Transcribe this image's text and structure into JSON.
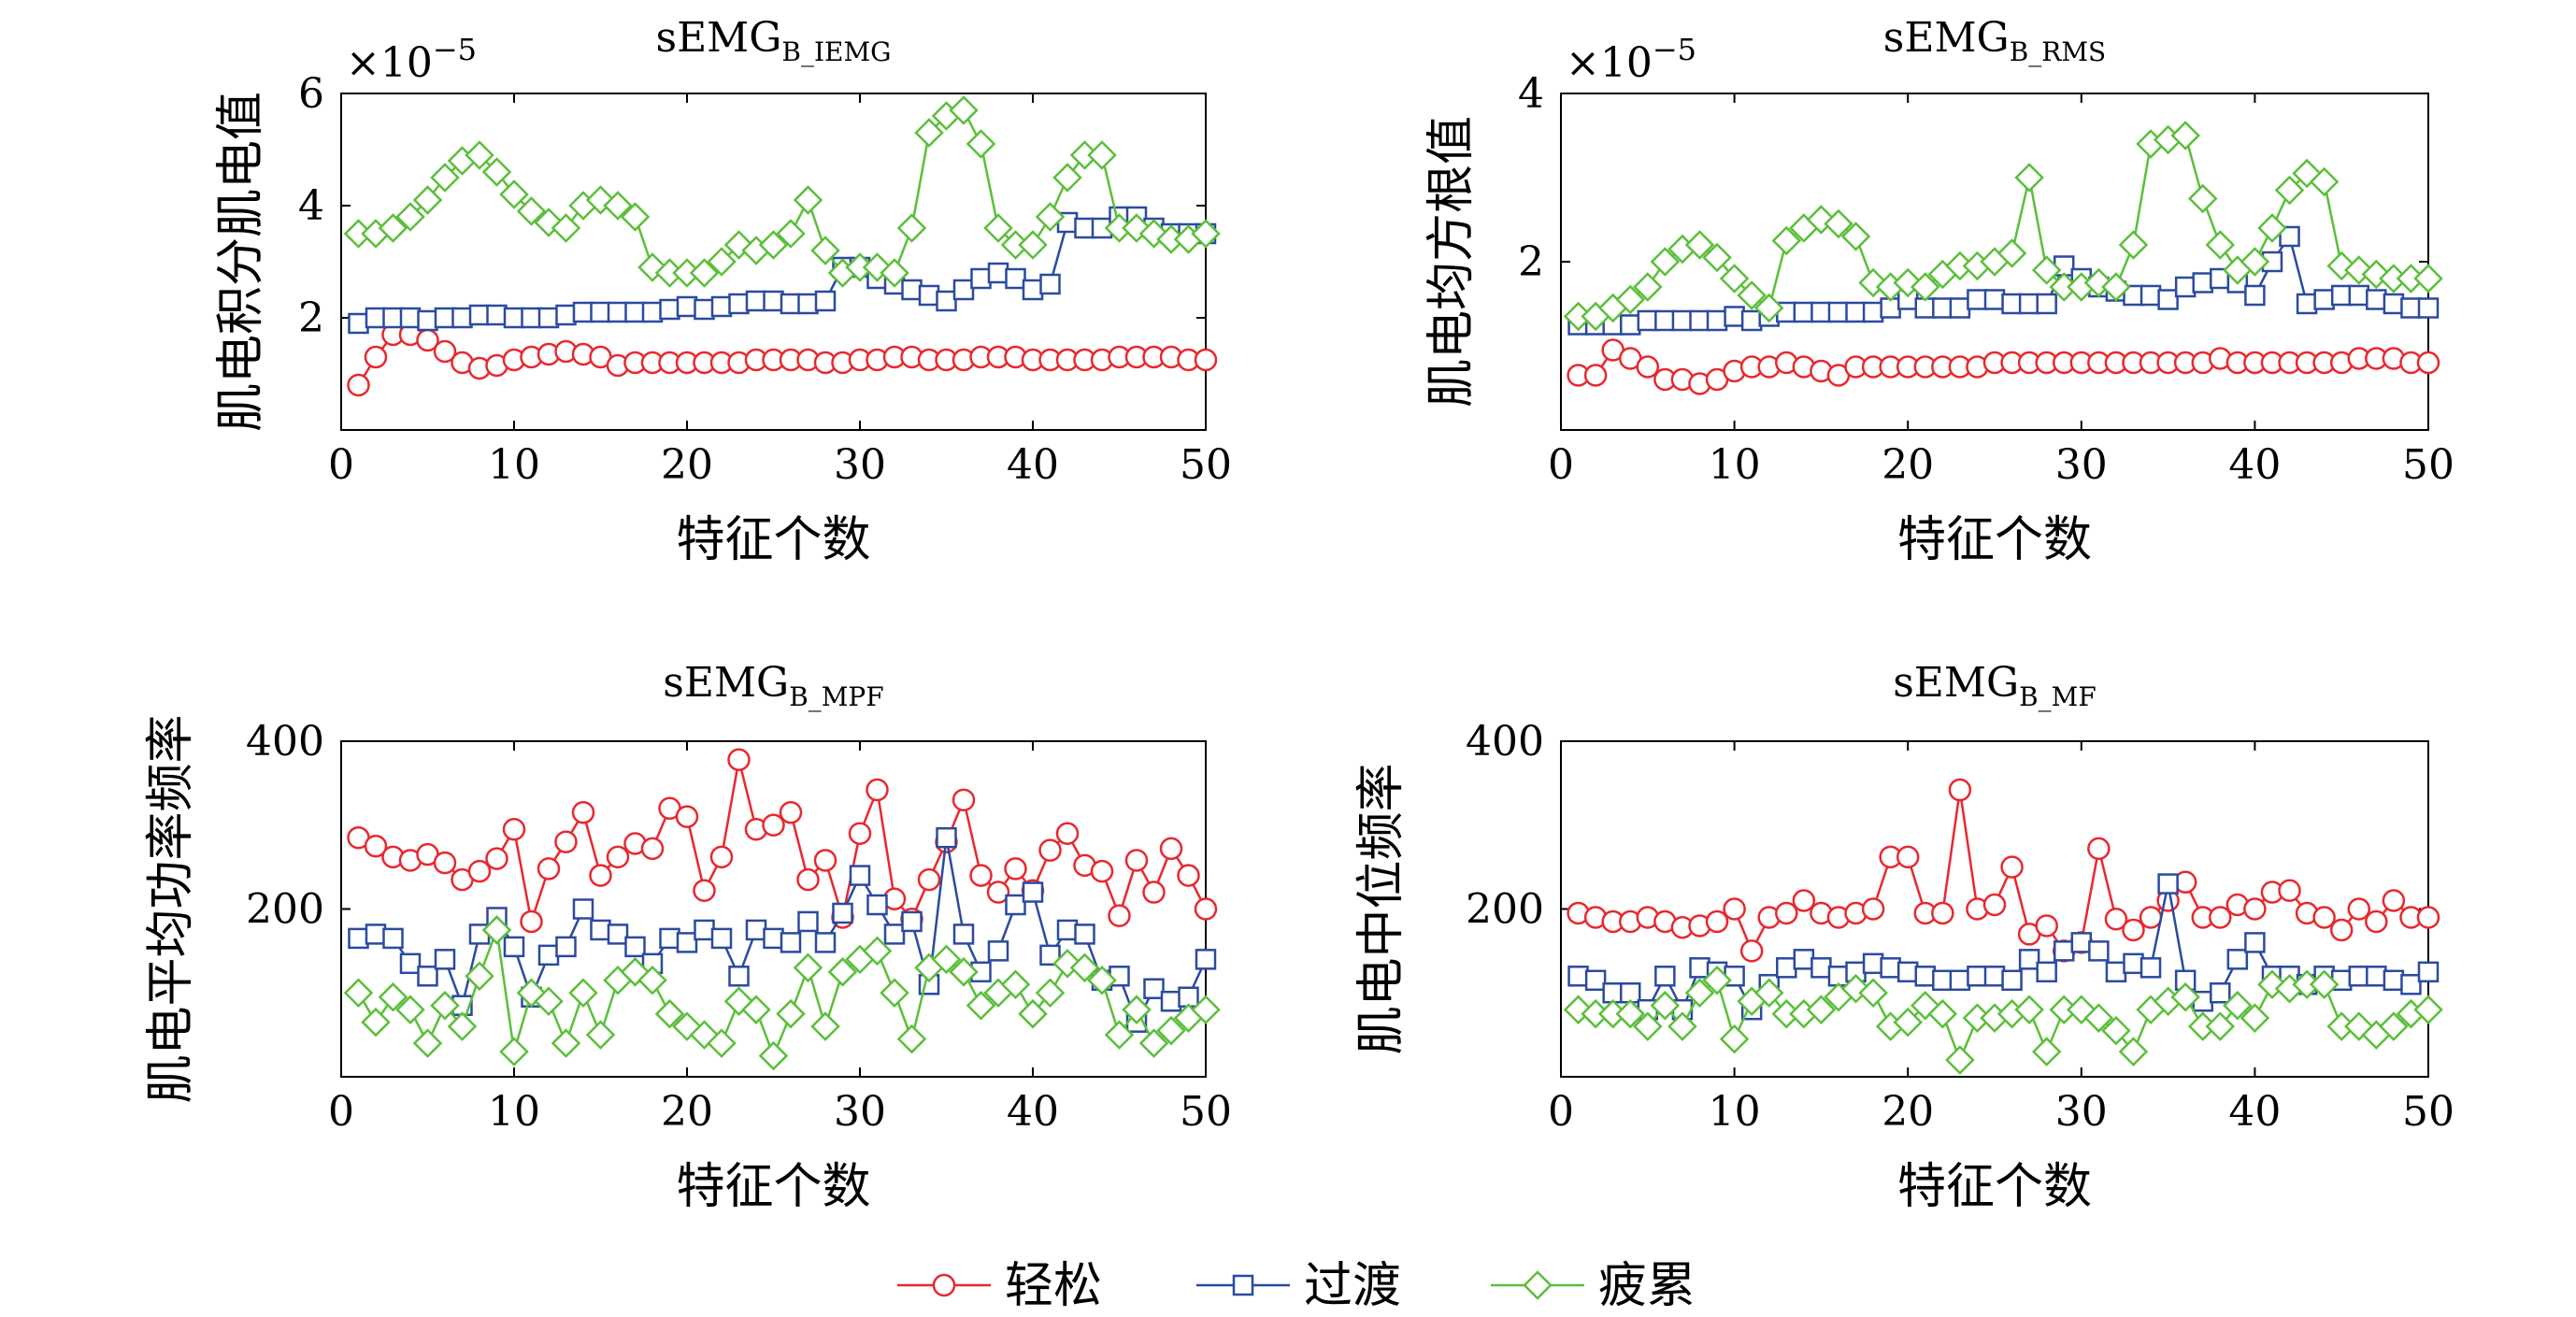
{
  "legend": {
    "items": [
      {
        "label": "轻松",
        "color": "#e8282e",
        "marker": "circle"
      },
      {
        "label": "过渡",
        "color": "#2b4aa0",
        "marker": "square"
      },
      {
        "label": "疲累",
        "color": "#5bbf3a",
        "marker": "diamond"
      }
    ]
  },
  "chart_data": [
    {
      "type": "line",
      "title_main": "sEMG",
      "title_sub": "B_IEMG",
      "xlabel": "特征个数",
      "ylabel": "肌电积分肌电值",
      "exponent": "×10",
      "exponent_power": "−5",
      "xlim": [
        0,
        50
      ],
      "ylim": [
        0,
        6
      ],
      "xticks": [
        0,
        10,
        20,
        30,
        40,
        50
      ],
      "yticks": [
        2,
        4,
        6
      ],
      "x": [
        1,
        2,
        3,
        4,
        5,
        6,
        7,
        8,
        9,
        10,
        11,
        12,
        13,
        14,
        15,
        16,
        17,
        18,
        19,
        20,
        21,
        22,
        23,
        24,
        25,
        26,
        27,
        28,
        29,
        30,
        31,
        32,
        33,
        34,
        35,
        36,
        37,
        38,
        39,
        40,
        41,
        42,
        43,
        44,
        45,
        46,
        47,
        48,
        49,
        50
      ],
      "series": [
        {
          "name": "轻松",
          "values": [
            0.8,
            1.3,
            1.7,
            1.7,
            1.6,
            1.4,
            1.2,
            1.1,
            1.15,
            1.25,
            1.3,
            1.35,
            1.4,
            1.35,
            1.3,
            1.15,
            1.2,
            1.2,
            1.2,
            1.2,
            1.2,
            1.2,
            1.2,
            1.25,
            1.25,
            1.25,
            1.25,
            1.2,
            1.2,
            1.25,
            1.25,
            1.3,
            1.3,
            1.25,
            1.25,
            1.25,
            1.3,
            1.3,
            1.3,
            1.25,
            1.25,
            1.25,
            1.25,
            1.25,
            1.3,
            1.3,
            1.3,
            1.3,
            1.25,
            1.25
          ]
        },
        {
          "name": "过渡",
          "values": [
            1.9,
            2.0,
            2.0,
            2.0,
            1.95,
            2.0,
            2.0,
            2.05,
            2.05,
            2.0,
            2.0,
            2.0,
            2.05,
            2.1,
            2.1,
            2.1,
            2.1,
            2.1,
            2.15,
            2.2,
            2.15,
            2.2,
            2.25,
            2.3,
            2.3,
            2.25,
            2.25,
            2.3,
            2.9,
            2.9,
            2.7,
            2.6,
            2.5,
            2.4,
            2.3,
            2.5,
            2.7,
            2.8,
            2.7,
            2.5,
            2.6,
            3.7,
            3.6,
            3.6,
            3.8,
            3.8,
            3.6,
            3.5,
            3.5,
            3.5
          ]
        },
        {
          "name": "疲累",
          "values": [
            3.5,
            3.5,
            3.6,
            3.8,
            4.1,
            4.5,
            4.8,
            4.9,
            4.6,
            4.2,
            3.9,
            3.7,
            3.6,
            4.0,
            4.1,
            4.0,
            3.8,
            2.9,
            2.8,
            2.8,
            2.8,
            3.0,
            3.3,
            3.2,
            3.3,
            3.5,
            4.1,
            3.2,
            2.8,
            2.9,
            2.9,
            2.8,
            3.6,
            5.3,
            5.6,
            5.7,
            5.1,
            3.6,
            3.3,
            3.3,
            3.8,
            4.5,
            4.9,
            4.9,
            3.6,
            3.6,
            3.5,
            3.4,
            3.4,
            3.5
          ]
        }
      ]
    },
    {
      "type": "line",
      "title_main": "sEMG",
      "title_sub": "B_RMS",
      "xlabel": "特征个数",
      "ylabel": "肌电均方根值",
      "exponent": "×10",
      "exponent_power": "−5",
      "xlim": [
        0,
        50
      ],
      "ylim": [
        0,
        4
      ],
      "xticks": [
        0,
        10,
        20,
        30,
        40,
        50
      ],
      "yticks": [
        2,
        4
      ],
      "x": [
        1,
        2,
        3,
        4,
        5,
        6,
        7,
        8,
        9,
        10,
        11,
        12,
        13,
        14,
        15,
        16,
        17,
        18,
        19,
        20,
        21,
        22,
        23,
        24,
        25,
        26,
        27,
        28,
        29,
        30,
        31,
        32,
        33,
        34,
        35,
        36,
        37,
        38,
        39,
        40,
        41,
        42,
        43,
        44,
        45,
        46,
        47,
        48,
        49,
        50
      ],
      "series": [
        {
          "name": "轻松",
          "values": [
            0.65,
            0.65,
            0.95,
            0.85,
            0.75,
            0.6,
            0.6,
            0.55,
            0.6,
            0.7,
            0.75,
            0.75,
            0.8,
            0.75,
            0.7,
            0.65,
            0.75,
            0.75,
            0.75,
            0.75,
            0.75,
            0.75,
            0.75,
            0.75,
            0.8,
            0.8,
            0.8,
            0.8,
            0.8,
            0.8,
            0.8,
            0.8,
            0.8,
            0.8,
            0.8,
            0.8,
            0.8,
            0.85,
            0.8,
            0.8,
            0.8,
            0.8,
            0.8,
            0.8,
            0.8,
            0.85,
            0.85,
            0.85,
            0.8,
            0.8
          ]
        },
        {
          "name": "过渡",
          "values": [
            1.25,
            1.25,
            1.25,
            1.25,
            1.3,
            1.3,
            1.3,
            1.3,
            1.3,
            1.35,
            1.3,
            1.35,
            1.4,
            1.4,
            1.4,
            1.4,
            1.4,
            1.4,
            1.45,
            1.55,
            1.45,
            1.45,
            1.45,
            1.55,
            1.55,
            1.5,
            1.5,
            1.5,
            1.95,
            1.8,
            1.7,
            1.65,
            1.6,
            1.6,
            1.55,
            1.7,
            1.75,
            1.8,
            1.75,
            1.6,
            2.0,
            2.3,
            1.5,
            1.55,
            1.6,
            1.6,
            1.55,
            1.5,
            1.45,
            1.45
          ]
        },
        {
          "name": "疲累",
          "values": [
            1.35,
            1.35,
            1.45,
            1.55,
            1.7,
            2.0,
            2.15,
            2.2,
            2.05,
            1.8,
            1.6,
            1.45,
            2.25,
            2.4,
            2.5,
            2.45,
            2.3,
            1.75,
            1.7,
            1.75,
            1.7,
            1.85,
            1.95,
            1.95,
            2.0,
            2.1,
            3.0,
            1.9,
            1.7,
            1.7,
            1.75,
            1.7,
            2.2,
            3.4,
            3.45,
            3.5,
            2.75,
            2.2,
            1.9,
            2.0,
            2.4,
            2.85,
            3.05,
            2.95,
            1.95,
            1.9,
            1.85,
            1.8,
            1.8,
            1.8
          ]
        }
      ]
    },
    {
      "type": "line",
      "title_main": "sEMG",
      "title_sub": "B_MPF",
      "xlabel": "特征个数",
      "ylabel": "肌电平均功率频率",
      "xlim": [
        0,
        50
      ],
      "ylim": [
        0,
        400
      ],
      "xticks": [
        0,
        10,
        20,
        30,
        40,
        50
      ],
      "yticks": [
        200,
        400
      ],
      "x": [
        1,
        2,
        3,
        4,
        5,
        6,
        7,
        8,
        9,
        10,
        11,
        12,
        13,
        14,
        15,
        16,
        17,
        18,
        19,
        20,
        21,
        22,
        23,
        24,
        25,
        26,
        27,
        28,
        29,
        30,
        31,
        32,
        33,
        34,
        35,
        36,
        37,
        38,
        39,
        40,
        41,
        42,
        43,
        44,
        45,
        46,
        47,
        48,
        49,
        50
      ],
      "series": [
        {
          "name": "轻松",
          "values": [
            285,
            275,
            262,
            258,
            265,
            255,
            235,
            245,
            260,
            295,
            185,
            248,
            280,
            315,
            240,
            262,
            278,
            272,
            320,
            310,
            222,
            262,
            378,
            295,
            300,
            315,
            235,
            258,
            190,
            290,
            342,
            212,
            188,
            235,
            280,
            330,
            240,
            220,
            248,
            222,
            270,
            290,
            252,
            245,
            192,
            258,
            220,
            272,
            240,
            200
          ]
        },
        {
          "name": "过渡",
          "values": [
            165,
            170,
            165,
            135,
            120,
            140,
            85,
            170,
            190,
            155,
            95,
            145,
            155,
            200,
            175,
            170,
            155,
            135,
            165,
            160,
            175,
            165,
            120,
            175,
            165,
            160,
            185,
            160,
            195,
            240,
            205,
            170,
            185,
            110,
            285,
            170,
            125,
            150,
            205,
            220,
            145,
            175,
            170,
            115,
            120,
            65,
            105,
            90,
            95,
            140
          ]
        },
        {
          "name": "疲累",
          "values": [
            100,
            65,
            95,
            80,
            40,
            85,
            60,
            120,
            175,
            30,
            100,
            90,
            40,
            100,
            50,
            115,
            125,
            115,
            75,
            60,
            50,
            40,
            90,
            80,
            25,
            75,
            130,
            60,
            125,
            140,
            150,
            100,
            45,
            130,
            140,
            125,
            85,
            100,
            110,
            75,
            100,
            135,
            130,
            115,
            50,
            80,
            40,
            55,
            70,
            80
          ]
        }
      ]
    },
    {
      "type": "line",
      "title_main": "sEMG",
      "title_sub": "B_MF",
      "xlabel": "特征个数",
      "ylabel": "肌电中位频率",
      "xlim": [
        0,
        50
      ],
      "ylim": [
        0,
        400
      ],
      "xticks": [
        0,
        10,
        20,
        30,
        40,
        50
      ],
      "yticks": [
        200,
        400
      ],
      "x": [
        1,
        2,
        3,
        4,
        5,
        6,
        7,
        8,
        9,
        10,
        11,
        12,
        13,
        14,
        15,
        16,
        17,
        18,
        19,
        20,
        21,
        22,
        23,
        24,
        25,
        26,
        27,
        28,
        29,
        30,
        31,
        32,
        33,
        34,
        35,
        36,
        37,
        38,
        39,
        40,
        41,
        42,
        43,
        44,
        45,
        46,
        47,
        48,
        49,
        50
      ],
      "series": [
        {
          "name": "轻松",
          "values": [
            195,
            190,
            185,
            185,
            190,
            185,
            178,
            180,
            185,
            200,
            150,
            190,
            195,
            210,
            195,
            190,
            195,
            200,
            262,
            262,
            195,
            195,
            342,
            200,
            205,
            250,
            170,
            180,
            150,
            160,
            272,
            188,
            175,
            190,
            210,
            232,
            190,
            190,
            205,
            200,
            220,
            222,
            195,
            190,
            175,
            200,
            185,
            210,
            190,
            190
          ]
        },
        {
          "name": "过渡",
          "values": [
            120,
            115,
            100,
            100,
            80,
            120,
            80,
            130,
            125,
            120,
            80,
            110,
            130,
            140,
            130,
            120,
            125,
            135,
            130,
            125,
            120,
            115,
            115,
            120,
            120,
            115,
            140,
            125,
            150,
            160,
            150,
            125,
            135,
            130,
            230,
            115,
            90,
            100,
            140,
            160,
            120,
            120,
            110,
            120,
            115,
            120,
            120,
            115,
            110,
            125
          ]
        },
        {
          "name": "疲累",
          "values": [
            80,
            75,
            75,
            75,
            60,
            85,
            60,
            100,
            115,
            45,
            90,
            100,
            75,
            75,
            80,
            95,
            105,
            100,
            60,
            65,
            85,
            75,
            20,
            70,
            70,
            75,
            80,
            30,
            80,
            80,
            70,
            55,
            30,
            80,
            90,
            95,
            60,
            60,
            85,
            70,
            110,
            105,
            110,
            110,
            60,
            60,
            50,
            60,
            75,
            80
          ]
        }
      ]
    }
  ]
}
